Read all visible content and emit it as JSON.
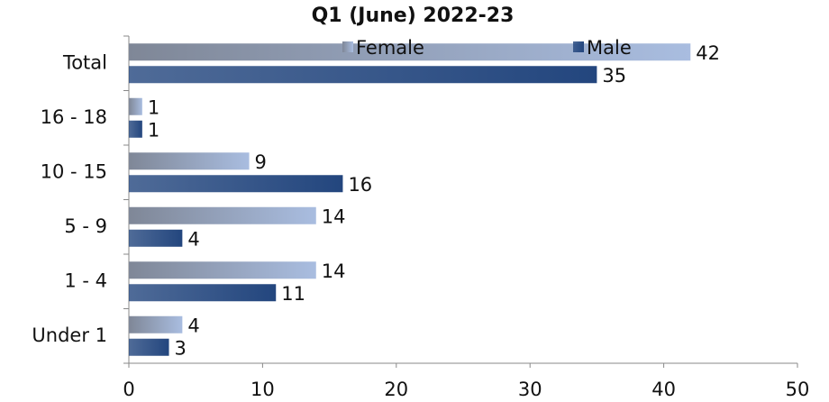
{
  "chart_data": {
    "type": "hbar",
    "title": "Q1 (June) 2022-23",
    "categories": [
      "Total",
      "16 - 18",
      "10 - 15",
      "5 - 9",
      "1 - 4",
      "Under 1"
    ],
    "series": [
      {
        "name": "Female",
        "color": "#a9bde0",
        "values": [
          42,
          1,
          9,
          14,
          14,
          4
        ]
      },
      {
        "name": "Male",
        "color": "#23467e",
        "values": [
          35,
          1,
          16,
          4,
          11,
          3
        ]
      }
    ],
    "xlim": [
      0,
      50
    ],
    "xticks": [
      0,
      10,
      20,
      30,
      40,
      50
    ],
    "legend": "top",
    "grid": false
  }
}
